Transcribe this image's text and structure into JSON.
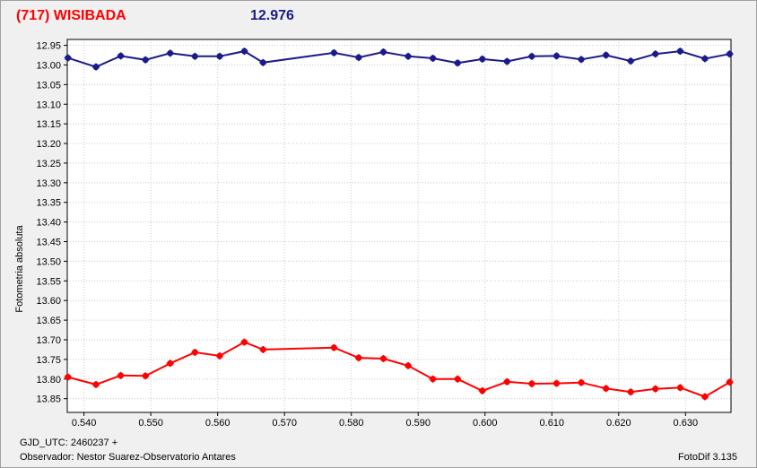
{
  "header": {
    "object_name": "(717) WISIBADA",
    "magnitude": "12.976"
  },
  "footer": {
    "gjd": "GJD_UTC: 2460237 +",
    "observer": "Observador: Nestor Suarez-Observatorio Antares",
    "software": "FotoDif 3.135"
  },
  "colors": {
    "series_blue": "#1a1a8c",
    "series_red": "#ff0000",
    "title_red": "#ff0000",
    "title_blue": "#1a1a8c"
  },
  "chart_data": {
    "type": "line",
    "title": "",
    "xlabel": "",
    "ylabel": "Fotometria absoluta",
    "xlim": [
      0.5375,
      0.6368
    ],
    "ylim": [
      13.885,
      12.935
    ],
    "y_inverted": true,
    "grid": true,
    "x_ticks": [
      "0.540",
      "0.550",
      "0.560",
      "0.570",
      "0.580",
      "0.590",
      "0.600",
      "0.610",
      "0.620",
      "0.630"
    ],
    "y_ticks": [
      "12.95",
      "13.00",
      "13.05",
      "13.10",
      "13.15",
      "13.20",
      "13.25",
      "13.30",
      "13.35",
      "13.40",
      "13.45",
      "13.50",
      "13.55",
      "13.60",
      "13.65",
      "13.70",
      "13.75",
      "13.80",
      "13.85"
    ],
    "series": [
      {
        "color": "#1a1a8c",
        "x": [
          0.5376,
          0.5418,
          0.5455,
          0.5492,
          0.5529,
          0.5566,
          0.5603,
          0.564,
          0.5668,
          0.5774,
          0.5811,
          0.5848,
          0.5885,
          0.5922,
          0.5959,
          0.5996,
          0.6033,
          0.607,
          0.6107,
          0.6144,
          0.6181,
          0.6218,
          0.6255,
          0.6292,
          0.6329,
          0.6366
        ],
        "values": [
          12.982,
          13.005,
          12.977,
          12.987,
          12.97,
          12.978,
          12.978,
          12.965,
          12.994,
          12.969,
          12.981,
          12.967,
          12.978,
          12.983,
          12.995,
          12.985,
          12.991,
          12.978,
          12.977,
          12.986,
          12.975,
          12.99,
          12.972,
          12.965,
          12.984,
          12.972
        ]
      },
      {
        "color": "#ff0000",
        "x": [
          0.5376,
          0.5418,
          0.5455,
          0.5492,
          0.5529,
          0.5566,
          0.5603,
          0.564,
          0.5668,
          0.5774,
          0.5811,
          0.5848,
          0.5885,
          0.5922,
          0.5959,
          0.5996,
          0.6033,
          0.607,
          0.6107,
          0.6144,
          0.6181,
          0.6218,
          0.6255,
          0.6292,
          0.6329,
          0.6366
        ],
        "values": [
          13.795,
          13.814,
          13.791,
          13.792,
          13.76,
          13.732,
          13.741,
          13.706,
          13.725,
          13.72,
          13.746,
          13.748,
          13.766,
          13.8,
          13.8,
          13.83,
          13.807,
          13.812,
          13.811,
          13.809,
          13.824,
          13.833,
          13.825,
          13.822,
          13.845,
          13.808
        ]
      }
    ]
  }
}
